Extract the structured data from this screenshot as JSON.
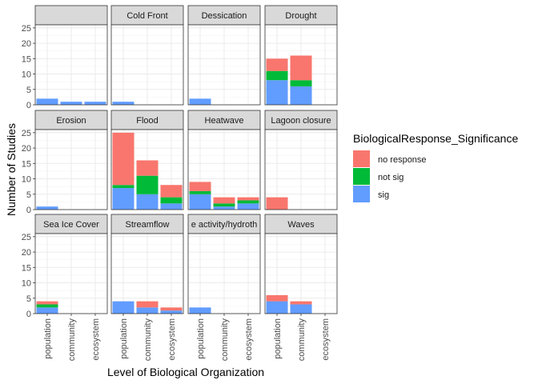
{
  "chart_data": {
    "type": "bar",
    "stacked": true,
    "xlabel": "Level of Biological Organization",
    "ylabel": "Number of Studies",
    "ylim": [
      0,
      26
    ],
    "yticks": [
      0,
      5,
      10,
      15,
      20,
      25
    ],
    "categories": [
      "population",
      "community",
      "ecosystem"
    ],
    "legend": {
      "title": "BiologicalResponse_Significance",
      "position": "right",
      "entries": [
        {
          "key": "no_response",
          "label": "no response",
          "color": "#F8766D"
        },
        {
          "key": "not_sig",
          "label": "not sig",
          "color": "#00BA38"
        },
        {
          "key": "sig",
          "label": "sig",
          "color": "#619CFF"
        }
      ]
    },
    "facets": [
      {
        "title": "",
        "sig": [
          2,
          1,
          1
        ],
        "not_sig": [
          0,
          0,
          0
        ],
        "no_response": [
          0,
          0,
          0
        ]
      },
      {
        "title": "Cold Front",
        "sig": [
          1,
          0,
          0
        ],
        "not_sig": [
          0,
          0,
          0
        ],
        "no_response": [
          0,
          0,
          0
        ]
      },
      {
        "title": "Dessication",
        "sig": [
          2,
          0,
          0
        ],
        "not_sig": [
          0,
          0,
          0
        ],
        "no_response": [
          0,
          0,
          0
        ]
      },
      {
        "title": "Drought",
        "sig": [
          8,
          6,
          0
        ],
        "not_sig": [
          3,
          2,
          0
        ],
        "no_response": [
          4,
          8,
          0
        ]
      },
      {
        "title": "Erosion",
        "sig": [
          1,
          0,
          0
        ],
        "not_sig": [
          0,
          0,
          0
        ],
        "no_response": [
          0,
          0,
          0
        ]
      },
      {
        "title": "Flood",
        "sig": [
          7,
          5,
          2
        ],
        "not_sig": [
          1,
          6,
          2
        ],
        "no_response": [
          17,
          5,
          4
        ]
      },
      {
        "title": "Heatwave",
        "sig": [
          5,
          1,
          2
        ],
        "not_sig": [
          1,
          1,
          1
        ],
        "no_response": [
          3,
          2,
          1
        ]
      },
      {
        "title": "Lagoon closure",
        "sig": [
          0,
          0,
          0
        ],
        "not_sig": [
          0,
          0,
          0
        ],
        "no_response": [
          4,
          0,
          0
        ]
      },
      {
        "title": "Sea Ice Cover",
        "sig": [
          2,
          0,
          0
        ],
        "not_sig": [
          1,
          0,
          0
        ],
        "no_response": [
          1,
          0,
          0
        ]
      },
      {
        "title": "Streamflow",
        "sig": [
          4,
          2,
          1
        ],
        "not_sig": [
          0,
          0,
          0
        ],
        "no_response": [
          0,
          2,
          1
        ]
      },
      {
        "title": "e activity/hydroth",
        "sig": [
          2,
          0,
          0
        ],
        "not_sig": [
          0,
          0,
          0
        ],
        "no_response": [
          0,
          0,
          0
        ]
      },
      {
        "title": "Waves",
        "sig": [
          4,
          3,
          0
        ],
        "not_sig": [
          0,
          0,
          0
        ],
        "no_response": [
          2,
          1,
          0
        ]
      }
    ]
  }
}
